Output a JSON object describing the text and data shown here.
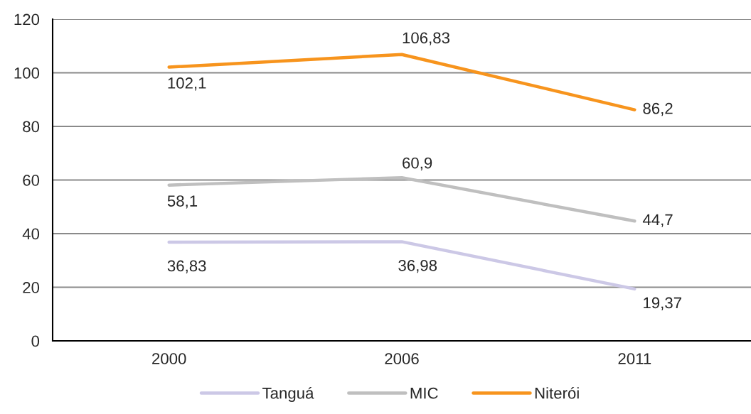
{
  "chart_data": {
    "type": "line",
    "categories": [
      "2000",
      "2006",
      "2011"
    ],
    "series": [
      {
        "name": "Tanguá",
        "color": "#ccc8e6",
        "values": [
          36.83,
          36.98,
          19.37
        ],
        "value_labels": [
          "36,83",
          "36,98",
          "19,37"
        ]
      },
      {
        "name": "MIC",
        "color": "#bfbfbf",
        "values": [
          58.1,
          60.9,
          44.7
        ],
        "value_labels": [
          "58,1",
          "60,9",
          "44,7"
        ]
      },
      {
        "name": "Niterói",
        "color": "#f7941d",
        "values": [
          102.1,
          106.83,
          86.2
        ],
        "value_labels": [
          "102,1",
          "106,83",
          "86,2"
        ]
      }
    ],
    "ylim": [
      0,
      120
    ],
    "yticks": [
      0,
      20,
      40,
      60,
      80,
      100,
      120
    ],
    "grid": "y",
    "legend": "bottom",
    "line_style": "solid"
  }
}
